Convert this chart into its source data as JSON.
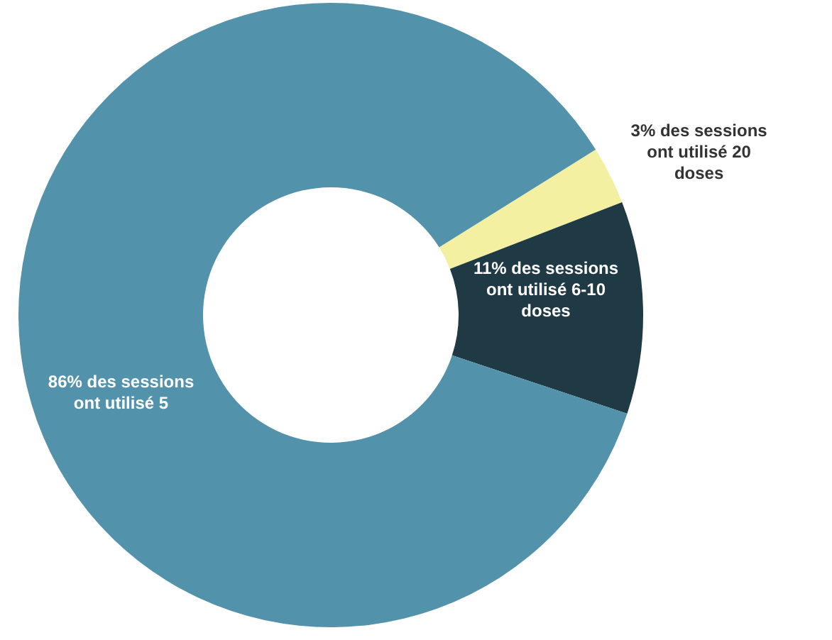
{
  "chart_data": {
    "type": "donut",
    "categories": [
      null,
      null,
      null
    ],
    "values": [
      3,
      11,
      86
    ],
    "colors": [
      "#f3f0a2",
      "#1f3a44",
      "#5293ab"
    ],
    "value_labels": [
      "3% des sessions ont utilisé 20 doses",
      "11% des sessions ont utilisé 6-10 doses",
      "86% des sessions ont utilisé 5"
    ]
  }
}
